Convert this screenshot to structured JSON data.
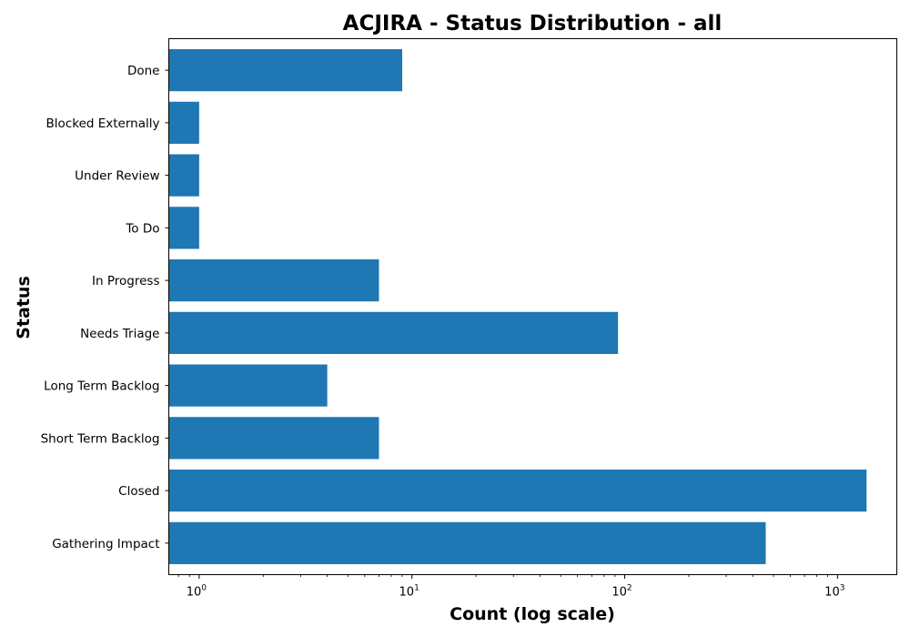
{
  "chart_data": {
    "type": "bar",
    "orientation": "horizontal",
    "title": "ACJIRA - Status Distribution - all",
    "xlabel": "Count (log scale)",
    "ylabel": "Status",
    "xscale": "log",
    "xlim": [
      0.72,
      1900
    ],
    "x_ticks": [
      1,
      10,
      100,
      1000
    ],
    "x_tick_labels": [
      {
        "base": "10",
        "exp": "0"
      },
      {
        "base": "10",
        "exp": "1"
      },
      {
        "base": "10",
        "exp": "2"
      },
      {
        "base": "10",
        "exp": "3"
      }
    ],
    "categories": [
      "Gathering Impact",
      "Closed",
      "Short Term Backlog",
      "Long Term Backlog",
      "Needs Triage",
      "In Progress",
      "To Do",
      "Under Review",
      "Blocked Externally",
      "Done"
    ],
    "values": [
      460,
      1370,
      7,
      4,
      93,
      7,
      1,
      1,
      1,
      9
    ],
    "grid": false,
    "legend": "none",
    "bar_color": "#1f77b4"
  }
}
